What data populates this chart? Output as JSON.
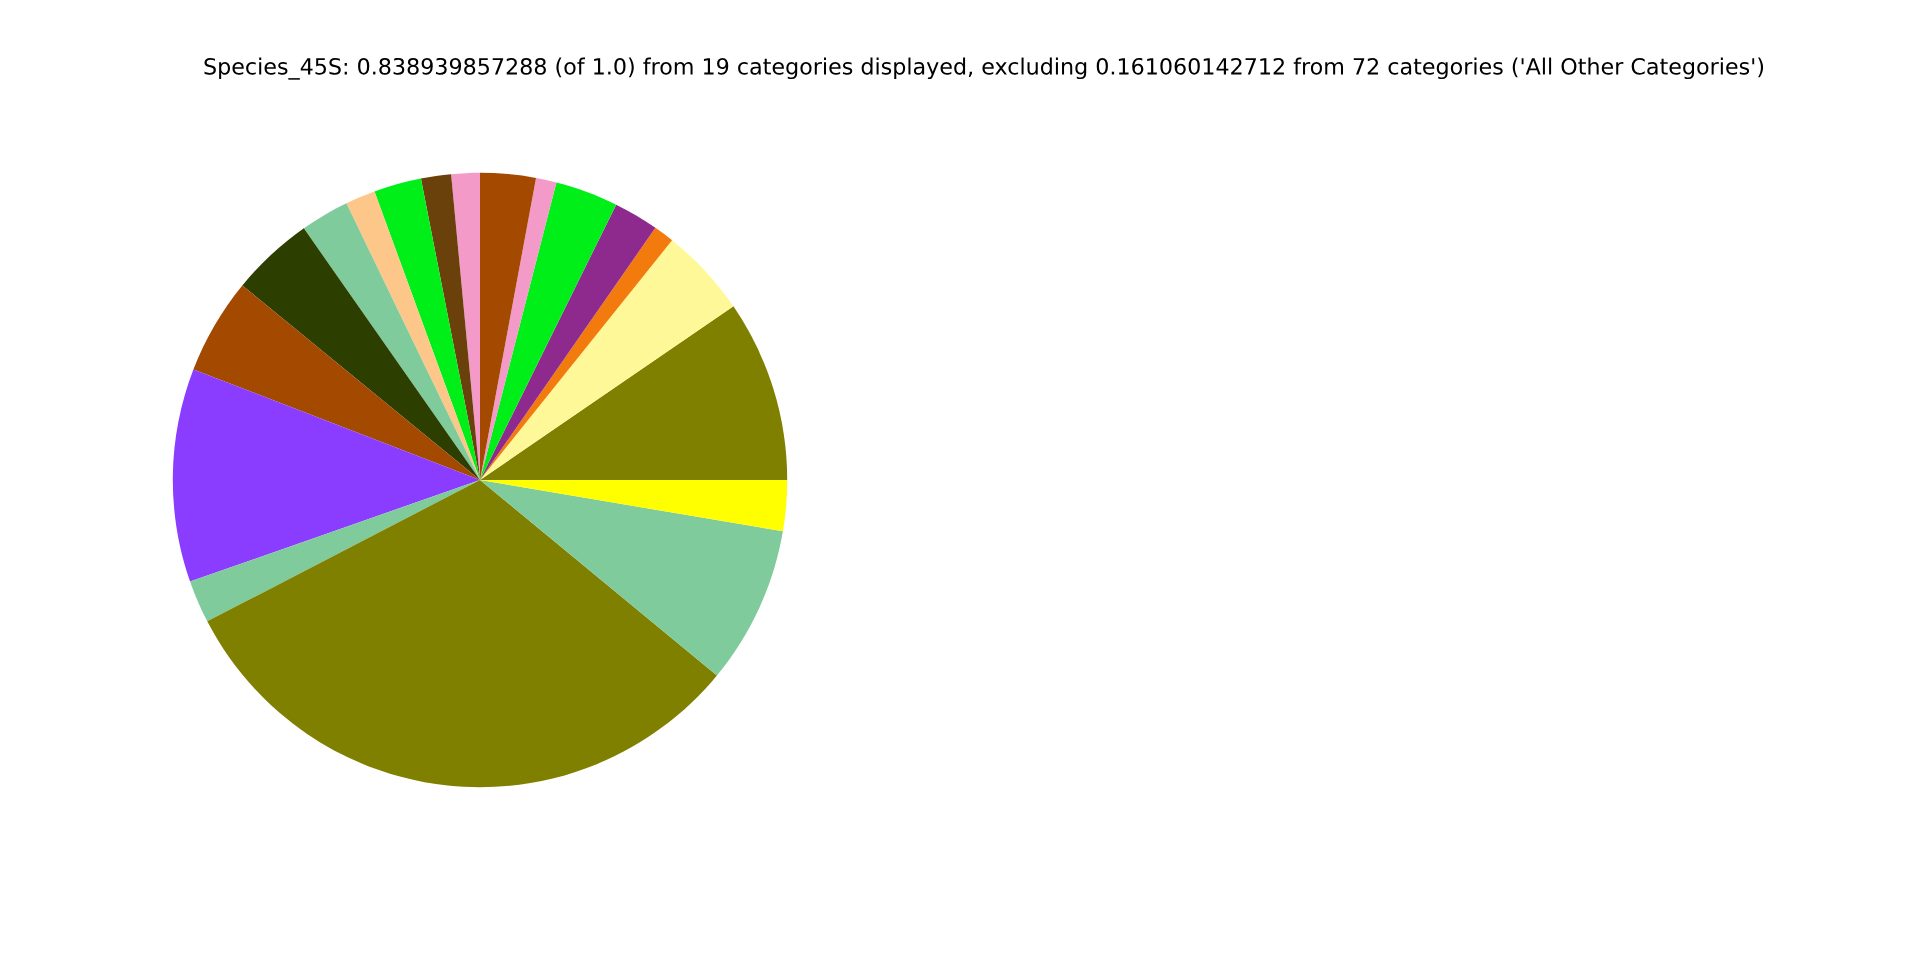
{
  "chart_data": {
    "type": "pie",
    "title": "Species_45S: 0.838939857288 (of 1.0) from 19 categories displayed, excluding 0.161060142712 from 72 categories ('All Other Categories')",
    "categories": [
      null,
      null,
      null,
      null,
      null,
      null,
      null,
      null,
      null,
      null,
      null,
      null,
      null,
      null,
      null,
      null,
      null,
      null,
      null
    ],
    "values": [
      9.56,
      4.69,
      1.08,
      2.36,
      3.31,
      1.08,
      2.92,
      1.5,
      1.58,
      2.5,
      1.58,
      2.56,
      4.36,
      5.06,
      11.22,
      2.25,
      31.41,
      8.31,
      2.67
    ],
    "colors": [
      "#808000",
      "#fff899",
      "#f37a0c",
      "#8e2a8e",
      "#00ef19",
      "#f49ac8",
      "#a44a00",
      "#f49ac8",
      "#6b410b",
      "#00ef19",
      "#fdc78a",
      "#80cb9c",
      "#2c3e00",
      "#a44a00",
      "#8b3dff",
      "#80cb9c",
      "#808000",
      "#80cb9c",
      "#ffff00"
    ]
  }
}
